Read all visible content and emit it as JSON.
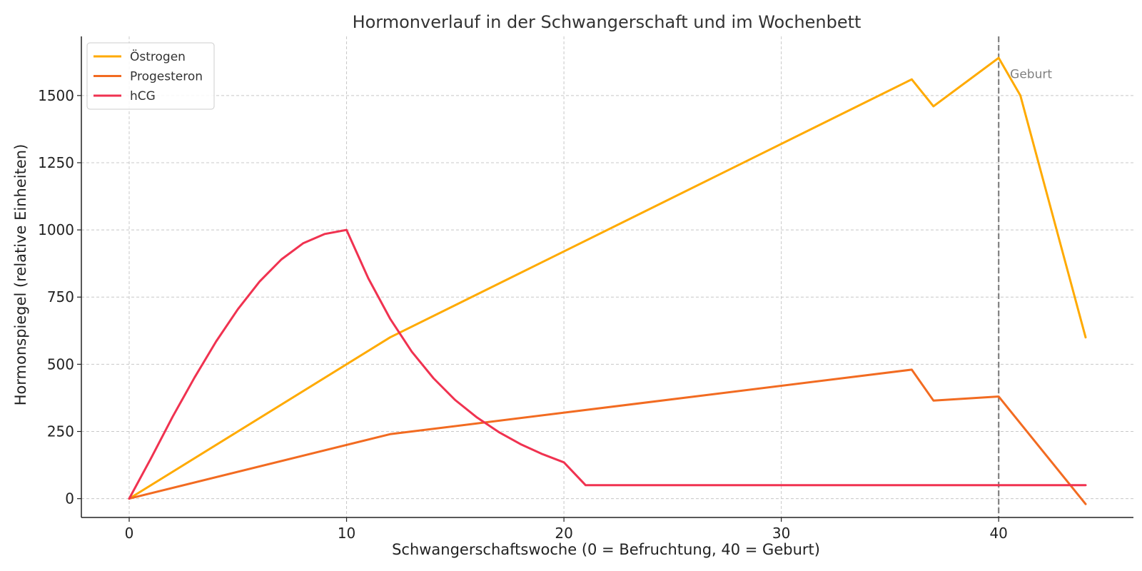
{
  "chart_data": {
    "type": "line",
    "title": "Hormonverlauf in der Schwangerschaft und im Wochenbett",
    "xlabel": "Schwangerschaftswoche (0 = Befruchtung, 40 = Geburt)",
    "ylabel": "Hormonspiegel (relative Einheiten)",
    "xlim": [
      -2.2,
      46.2
    ],
    "ylim": [
      -70,
      1720
    ],
    "xticks": [
      0,
      10,
      20,
      30,
      40
    ],
    "yticks": [
      0,
      250,
      500,
      750,
      1000,
      1250,
      1500
    ],
    "grid": true,
    "legend_position": "top-left",
    "series": [
      {
        "name": "Östrogen",
        "color": "#FFAA00",
        "points": [
          [
            0,
            0
          ],
          [
            12,
            600
          ],
          [
            36,
            1560
          ],
          [
            37,
            1460
          ],
          [
            40,
            1640
          ],
          [
            41,
            1500
          ],
          [
            44,
            600
          ]
        ]
      },
      {
        "name": "Progesteron",
        "color": "#F26B21",
        "points": [
          [
            0,
            0
          ],
          [
            12,
            240
          ],
          [
            36,
            480
          ],
          [
            37,
            365
          ],
          [
            40,
            380
          ],
          [
            44,
            -20
          ]
        ]
      },
      {
        "name": "hCG",
        "color": "#F03250",
        "points": [
          [
            0,
            0
          ],
          [
            1,
            150
          ],
          [
            2,
            305
          ],
          [
            3,
            450
          ],
          [
            4,
            585
          ],
          [
            5,
            705
          ],
          [
            6,
            808
          ],
          [
            7,
            890
          ],
          [
            8,
            950
          ],
          [
            9,
            985
          ],
          [
            10,
            1000
          ],
          [
            11,
            820
          ],
          [
            12,
            670
          ],
          [
            13,
            547
          ],
          [
            14,
            448
          ],
          [
            15,
            367
          ],
          [
            16,
            302
          ],
          [
            17,
            248
          ],
          [
            18,
            203
          ],
          [
            19,
            166
          ],
          [
            20,
            135
          ],
          [
            21,
            50
          ],
          [
            44,
            50
          ]
        ]
      }
    ],
    "annotations": [
      {
        "type": "vline",
        "x": 40,
        "label": "Geburt",
        "color": "#808080"
      }
    ]
  }
}
